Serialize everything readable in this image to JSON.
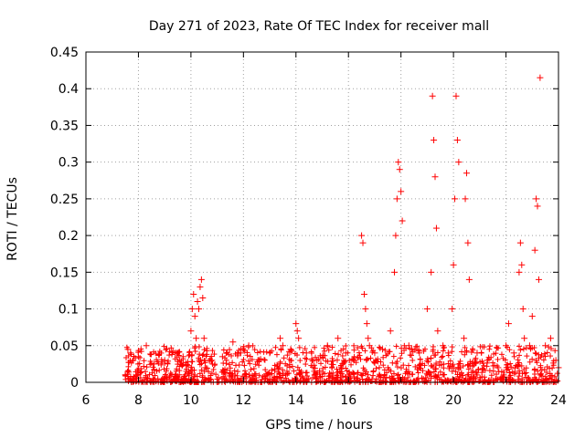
{
  "chart_data": {
    "type": "scatter",
    "title": "Day 271 of 2023, Rate Of TEC Index for receiver mall",
    "xlabel": "GPS time / hours",
    "ylabel": "ROTI / TECUs",
    "xlim": [
      6,
      24
    ],
    "ylim": [
      0,
      0.45
    ],
    "xticks": [
      6,
      8,
      10,
      12,
      14,
      16,
      18,
      20,
      22,
      24
    ],
    "yticks": [
      0,
      0.05,
      0.1,
      0.15,
      0.2,
      0.25,
      0.3,
      0.35,
      0.4,
      0.45
    ],
    "grid": true,
    "marker": "+",
    "series": [
      {
        "name": "ROTI",
        "color": "#ff0000",
        "x": [
          7.5,
          7.6,
          7.7,
          7.8,
          8.0,
          8.3,
          8.6,
          9.0,
          9.4,
          9.7,
          10.0,
          10.05,
          10.1,
          10.15,
          10.2,
          10.25,
          10.3,
          10.35,
          10.4,
          10.45,
          10.5,
          10.8,
          11.2,
          11.6,
          11.9,
          12.2,
          12.6,
          13.0,
          13.4,
          13.5,
          13.8,
          14.0,
          14.05,
          14.1,
          14.4,
          14.8,
          15.2,
          15.6,
          15.9,
          16.2,
          16.5,
          16.55,
          16.6,
          16.65,
          16.7,
          16.75,
          16.8,
          17.0,
          17.3,
          17.6,
          17.75,
          17.8,
          17.85,
          17.9,
          17.95,
          18.0,
          18.05,
          18.3,
          18.7,
          19.0,
          19.15,
          19.2,
          19.25,
          19.3,
          19.35,
          19.4,
          19.6,
          19.8,
          19.95,
          20.0,
          20.05,
          20.1,
          20.15,
          20.2,
          20.4,
          20.45,
          20.5,
          20.55,
          20.6,
          20.9,
          21.3,
          21.7,
          22.0,
          22.1,
          22.3,
          22.5,
          22.55,
          22.6,
          22.65,
          22.7,
          22.9,
          23.0,
          23.1,
          23.15,
          23.2,
          23.25,
          23.3,
          23.5,
          23.7,
          23.9,
          24.0
        ],
        "y": [
          0.01,
          0.045,
          0.04,
          0.03,
          0.035,
          0.05,
          0.025,
          0.03,
          0.04,
          0.035,
          0.07,
          0.1,
          0.12,
          0.09,
          0.06,
          0.11,
          0.1,
          0.13,
          0.14,
          0.115,
          0.06,
          0.03,
          0.035,
          0.055,
          0.04,
          0.05,
          0.03,
          0.04,
          0.06,
          0.05,
          0.045,
          0.08,
          0.07,
          0.06,
          0.04,
          0.03,
          0.05,
          0.06,
          0.04,
          0.03,
          0.2,
          0.19,
          0.12,
          0.1,
          0.08,
          0.06,
          0.05,
          0.04,
          0.045,
          0.07,
          0.15,
          0.2,
          0.25,
          0.3,
          0.29,
          0.26,
          0.22,
          0.05,
          0.04,
          0.1,
          0.15,
          0.39,
          0.33,
          0.28,
          0.21,
          0.07,
          0.05,
          0.04,
          0.1,
          0.16,
          0.25,
          0.39,
          0.33,
          0.3,
          0.06,
          0.25,
          0.285,
          0.19,
          0.14,
          0.04,
          0.03,
          0.02,
          0.05,
          0.08,
          0.04,
          0.15,
          0.19,
          0.16,
          0.1,
          0.06,
          0.05,
          0.09,
          0.18,
          0.25,
          0.24,
          0.14,
          0.415,
          0.05,
          0.06,
          0.03,
          0.02
        ]
      }
    ]
  }
}
